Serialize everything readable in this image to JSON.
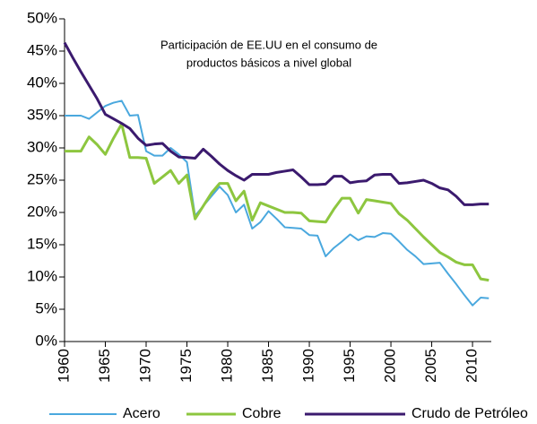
{
  "chart_data": {
    "type": "line",
    "annotation": [
      "Participación de EE.UU en el consumo de",
      "productos básicos a nivel global"
    ],
    "x": [
      1960,
      1961,
      1962,
      1963,
      1964,
      1965,
      1966,
      1967,
      1968,
      1969,
      1970,
      1971,
      1972,
      1973,
      1974,
      1975,
      1976,
      1977,
      1978,
      1979,
      1980,
      1981,
      1982,
      1983,
      1984,
      1985,
      1986,
      1987,
      1988,
      1989,
      1990,
      1991,
      1992,
      1993,
      1994,
      1995,
      1996,
      1997,
      1998,
      1999,
      2000,
      2001,
      2002,
      2003,
      2004,
      2005,
      2006,
      2007,
      2008,
      2009,
      2010,
      2011,
      2012
    ],
    "series": [
      {
        "name": "Acero",
        "color": "#4aa8de",
        "values": [
          35,
          35,
          35,
          34.5,
          35.5,
          36.5,
          37,
          37.3,
          35,
          35.1,
          29.5,
          28.8,
          28.8,
          30,
          29,
          27.8,
          19.5,
          21,
          22.5,
          24,
          22.7,
          20,
          21.2,
          17.5,
          18.5,
          20.2,
          19,
          17.7,
          17.6,
          17.5,
          16.5,
          16.4,
          13.2,
          14.5,
          15.5,
          16.6,
          15.7,
          16.3,
          16.2,
          16.8,
          16.7,
          15.5,
          14.2,
          13.2,
          12,
          12.1,
          12.2,
          10.5,
          8.9,
          7.2,
          5.6,
          6.8,
          6.7
        ]
      },
      {
        "name": "Cobre",
        "color": "#8dc63f",
        "values": [
          29.5,
          29.5,
          29.5,
          31.7,
          30.5,
          29,
          31.5,
          33.7,
          28.5,
          28.5,
          28.4,
          24.5,
          25.5,
          26.5,
          24.5,
          25.8,
          19,
          21,
          23,
          24.5,
          24.5,
          21.8,
          23.3,
          18.8,
          21.5,
          21,
          20.5,
          20,
          20,
          19.9,
          18.7,
          18.6,
          18.5,
          20.5,
          22.2,
          22.2,
          19.9,
          22,
          21.8,
          21.6,
          21.4,
          19.8,
          18.8,
          17.5,
          16.2,
          15,
          13.8,
          13.1,
          12.3,
          11.9,
          11.9,
          9.7,
          9.5
        ]
      },
      {
        "name": "Crudo de Petróleo",
        "color": "#3b1a6e",
        "values": [
          46.3,
          44,
          41.8,
          39.7,
          37.6,
          35.2,
          34.5,
          33.8,
          33,
          31.5,
          30.4,
          30.6,
          30.7,
          29.5,
          28.6,
          28.5,
          28.4,
          29.8,
          28.7,
          27.5,
          26.5,
          25.7,
          25,
          25.9,
          25.9,
          25.9,
          26.2,
          26.4,
          26.6,
          25.5,
          24.3,
          24.3,
          24.4,
          25.6,
          25.6,
          24.6,
          24.8,
          24.9,
          25.8,
          25.9,
          25.9,
          24.5,
          24.6,
          24.8,
          25,
          24.5,
          23.8,
          23.5,
          22.5,
          21.2,
          21.2,
          21.3,
          21.3
        ]
      }
    ],
    "xlim": [
      1960,
      2012.3
    ],
    "xticks": [
      1960,
      1965,
      1970,
      1975,
      1980,
      1985,
      1990,
      1995,
      2000,
      2005,
      2010
    ],
    "ylim": [
      0,
      50
    ],
    "yticks": [
      {
        "value": 0,
        "label": "0%"
      },
      {
        "value": 5,
        "label": "5%"
      },
      {
        "value": 10,
        "label": "10%"
      },
      {
        "value": 15,
        "label": "15%"
      },
      {
        "value": 20,
        "label": "20%"
      },
      {
        "value": 25,
        "label": "25%"
      },
      {
        "value": 30,
        "label": "30%"
      },
      {
        "value": 35,
        "label": "35%"
      },
      {
        "value": 40,
        "label": "40%"
      },
      {
        "value": 45,
        "label": "45%"
      },
      {
        "value": 50,
        "label": "50%"
      }
    ],
    "legend": "bottom"
  }
}
